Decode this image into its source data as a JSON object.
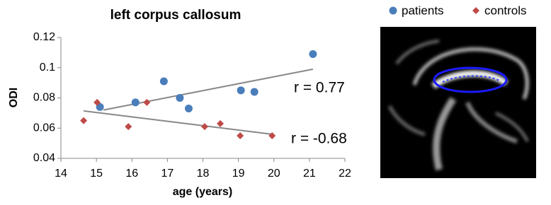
{
  "chart_data": {
    "type": "scatter",
    "title": "left corpus callosum",
    "xlabel": "age (years)",
    "ylabel": "ODI",
    "xlim": [
      14,
      22
    ],
    "xticks": [
      14,
      15,
      16,
      17,
      18,
      19,
      20,
      21,
      22
    ],
    "ylim": [
      0.04,
      0.12
    ],
    "yticks": [
      0.04,
      0.06,
      0.08,
      0.1,
      0.12
    ],
    "series": [
      {
        "name": "patients",
        "color": "#4a7ebb",
        "marker": "circle",
        "x": [
          15.1,
          16.1,
          16.9,
          17.35,
          17.6,
          19.07,
          19.45,
          21.1
        ],
        "values": [
          0.074,
          0.077,
          0.091,
          0.08,
          0.073,
          0.085,
          0.084,
          0.109
        ],
        "fit": {
          "x": [
            15.2,
            21.1
          ],
          "values": [
            0.072,
            0.099
          ]
        },
        "annotation": "r = 0.77"
      },
      {
        "name": "controls",
        "color": "#be4b48",
        "marker": "diamond",
        "x": [
          14.64,
          15.02,
          15.9,
          16.42,
          18.05,
          18.49,
          19.05,
          19.95
        ],
        "values": [
          0.065,
          0.077,
          0.061,
          0.077,
          0.061,
          0.063,
          0.055,
          0.055
        ],
        "fit": {
          "x": [
            14.64,
            19.97
          ],
          "values": [
            0.0714,
            0.0559
          ]
        },
        "annotation": "r = -0.68"
      }
    ]
  }
}
